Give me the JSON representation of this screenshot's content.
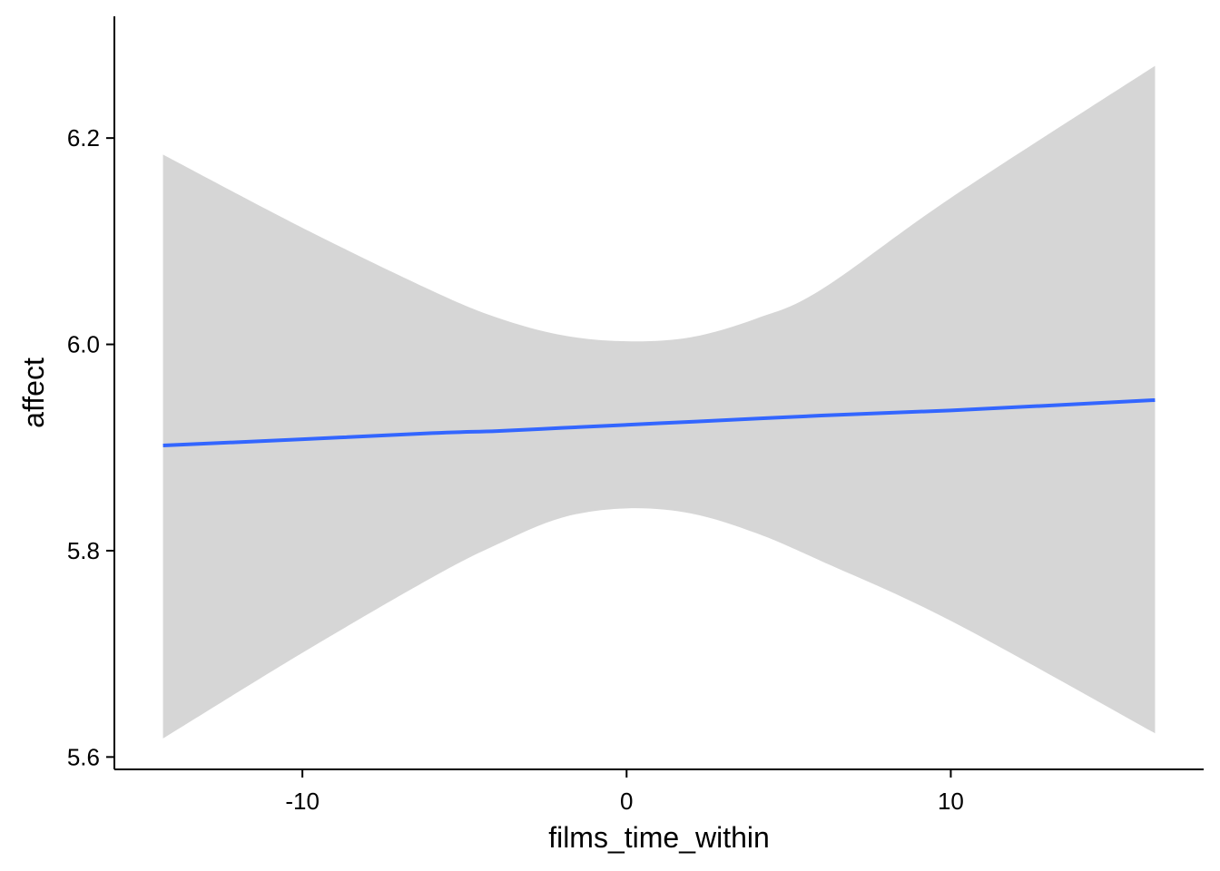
{
  "chart_data": {
    "type": "line",
    "title": "",
    "xlabel": "films_time_within",
    "ylabel": "affect",
    "xlim": [
      -15.8,
      17.8
    ],
    "ylim": [
      5.588,
      6.318
    ],
    "x_ticks": [
      -10,
      0,
      10
    ],
    "x_tick_labels": [
      "-10",
      "0",
      "10"
    ],
    "y_ticks": [
      5.6,
      5.8,
      6.0,
      6.2
    ],
    "y_tick_labels": [
      "5.6",
      "5.8",
      "6.0",
      "6.2"
    ],
    "grid": false,
    "legend": "none",
    "series": [
      {
        "x": [
          -14.3,
          -10,
          -6,
          -4,
          -2,
          0,
          2,
          4,
          6,
          10,
          16.3
        ],
        "y": [
          5.902,
          5.908,
          5.914,
          5.916,
          5.919,
          5.922,
          5.925,
          5.928,
          5.931,
          5.936,
          5.946
        ],
        "ci_upper": [
          6.184,
          6.113,
          6.052,
          6.026,
          6.009,
          6.003,
          6.007,
          6.025,
          6.053,
          6.142,
          6.27
        ],
        "ci_lower": [
          5.618,
          5.701,
          5.774,
          5.806,
          5.832,
          5.841,
          5.836,
          5.817,
          5.79,
          5.732,
          5.623
        ]
      }
    ],
    "colors": {
      "line": "#3366FF",
      "ribbon": "#D6D6D6",
      "axis": "#000000"
    }
  }
}
